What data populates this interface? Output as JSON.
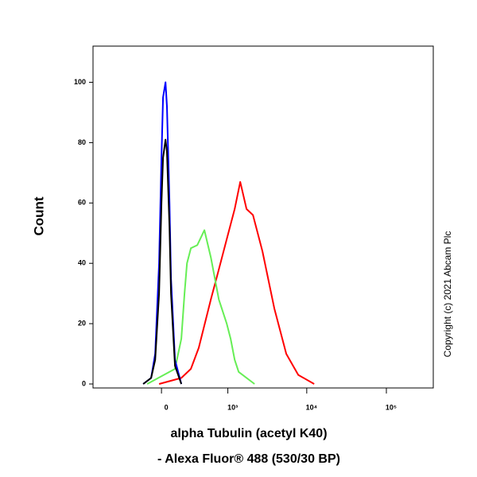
{
  "chart_data": {
    "type": "line",
    "x_label_lines": [
      "alpha Tubulin (acetyl K40)",
      "- Alexa Fluor® 488 (530/30 BP)"
    ],
    "y_label": "Count",
    "copyright": "Copyright (c) 2021 Abcam Plc",
    "xscale": "biexponential",
    "xlim": [
      -1065,
      388000
    ],
    "ylim": [
      0,
      112
    ],
    "xticks": [
      {
        "value": 0,
        "label": "0"
      },
      {
        "value": 1000,
        "label": "10³"
      },
      {
        "value": 10000,
        "label": "10⁴"
      },
      {
        "value": 100000,
        "label": "10⁵"
      }
    ],
    "yticks": [
      0,
      20,
      40,
      60,
      80,
      100
    ],
    "series": [
      {
        "color": "#ff0000",
        "x": [
          -21,
          182,
          287,
          390,
          589,
          759,
          966,
          1227,
          1447,
          1743,
          2100,
          2772,
          3918,
          5535,
          7830,
          12390
        ],
        "values": [
          0,
          2,
          5,
          12,
          28,
          38,
          48,
          58,
          67,
          58,
          56,
          44,
          25,
          10,
          3,
          0
        ]
      },
      {
        "color": "#66ee55",
        "x": [
          -128,
          120,
          182,
          215,
          242,
          287,
          368,
          476,
          589,
          759,
          966,
          1088,
          1227,
          1380,
          2200
        ],
        "values": [
          0,
          5,
          15,
          30,
          40,
          45,
          46,
          51,
          42,
          28,
          20,
          15,
          8,
          4,
          0
        ]
      },
      {
        "color": "#0000ff",
        "x": [
          -166,
          -91,
          -55,
          -21,
          0,
          14,
          35,
          48,
          70,
          84,
          120,
          182
        ],
        "values": [
          0,
          2,
          10,
          40,
          75,
          95,
          100,
          92,
          60,
          35,
          8,
          0
        ]
      },
      {
        "color": "#000000",
        "x": [
          -166,
          -91,
          -55,
          -21,
          0,
          14,
          35,
          48,
          70,
          84,
          120,
          182
        ],
        "values": [
          0,
          2,
          8,
          30,
          60,
          75,
          81,
          77,
          52,
          30,
          6,
          0
        ]
      }
    ]
  }
}
